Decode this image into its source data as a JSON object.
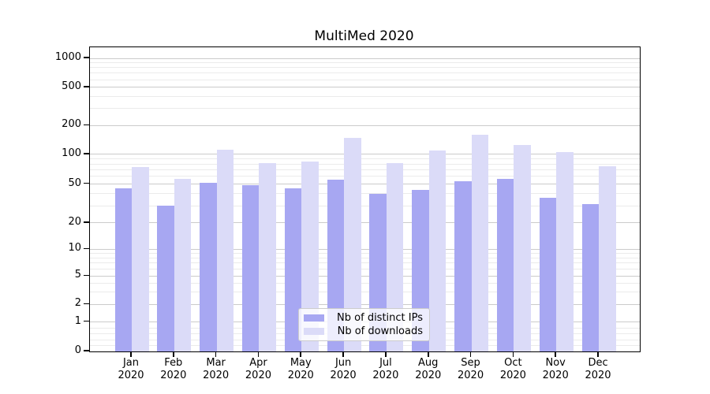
{
  "title": "MultiMed 2020",
  "chart_data": {
    "type": "bar",
    "title": "MultiMed 2020",
    "categories": [
      "Jan",
      "Feb",
      "Mar",
      "Apr",
      "May",
      "Jun",
      "Jul",
      "Aug",
      "Sep",
      "Oct",
      "Nov",
      "Dec"
    ],
    "category_year": "2020",
    "series": [
      {
        "name": "Nb of distinct IPs",
        "color": "#a7a7f2",
        "values": [
          45,
          30,
          52,
          49,
          45,
          55,
          40,
          44,
          53,
          57,
          36,
          31
        ]
      },
      {
        "name": "Nb of downloads",
        "color": "#dbdbf8",
        "values": [
          75,
          56,
          112,
          82,
          85,
          150,
          82,
          110,
          160,
          125,
          105,
          76
        ]
      }
    ],
    "xlabel": "",
    "ylabel": "",
    "yscale": "symlog",
    "yticks": [
      0,
      1,
      2,
      5,
      10,
      20,
      50,
      100,
      200,
      500,
      1000
    ],
    "yticks_minor": [
      0.2,
      0.4,
      0.6,
      0.8,
      3,
      4,
      6,
      7,
      8,
      9,
      30,
      40,
      60,
      70,
      80,
      90,
      300,
      400,
      600,
      700,
      800,
      900
    ],
    "ylim": [
      0,
      1300
    ],
    "grid": true,
    "legend_position": "lower center",
    "colors": {
      "grid_major": "#cbcbcb",
      "grid_minor": "#ebebeb",
      "axis": "#000000",
      "background": "#ffffff"
    }
  }
}
